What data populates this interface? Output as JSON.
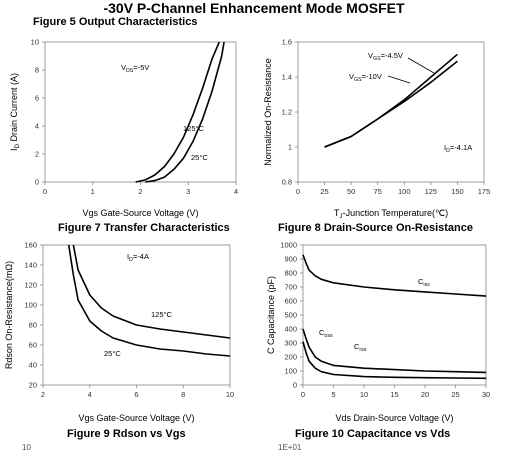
{
  "page": {
    "header": "-30V P-Channel Enhancement Mode MOSFET",
    "titles": {
      "fig5": "Figure 5 Output Characteristics",
      "fig7": "Figure 7 Transfer Characteristics",
      "fig8": "Figure 8 Drain-Source On-Resistance",
      "fig9": "Figure 9 Rdson vs Vgs",
      "fig10": "Figure 10 Capacitance vs Vds"
    },
    "bottom_tick_left": "10",
    "bottom_tick_right": "1E+01"
  },
  "chart_data": [
    {
      "id": "fig7",
      "type": "line",
      "title": "Figure 7 Transfer Characteristics",
      "xlabel": "Vgs Gate-Source Voltage (V)",
      "ylabel": "I_D Drain Current (A)",
      "xlim": [
        0,
        4
      ],
      "ylim": [
        0,
        10
      ],
      "xticks": [
        "0",
        "1",
        "2",
        "3",
        "4"
      ],
      "yticks": [
        "0",
        "2",
        "4",
        "6",
        "8",
        "10"
      ],
      "annotations": [
        "V_DS=-5V"
      ],
      "series": [
        {
          "name": "125°C",
          "x": [
            1.9,
            2.1,
            2.3,
            2.5,
            2.7,
            2.9,
            3.1,
            3.3,
            3.5,
            3.65
          ],
          "y": [
            0,
            0.15,
            0.5,
            1.1,
            2.0,
            3.2,
            4.8,
            6.7,
            8.8,
            10
          ]
        },
        {
          "name": "25°C",
          "x": [
            2.1,
            2.3,
            2.5,
            2.7,
            2.9,
            3.1,
            3.3,
            3.5,
            3.7,
            3.75
          ],
          "y": [
            0,
            0.1,
            0.35,
            0.9,
            1.7,
            2.9,
            4.5,
            6.5,
            9.0,
            10
          ]
        }
      ]
    },
    {
      "id": "fig8",
      "type": "line",
      "title": "Figure 8 Drain-Source On-Resistance",
      "xlabel": "T_J-Junction Temperature(℃)",
      "ylabel": "Normalized On-Resistance",
      "xlim": [
        0,
        175
      ],
      "ylim": [
        0.8,
        1.6
      ],
      "xticks": [
        "0",
        "25",
        "50",
        "75",
        "100",
        "125",
        "150",
        "175"
      ],
      "yticks": [
        "0.8",
        "1",
        "1.2",
        "1.4",
        "1.6"
      ],
      "annotations": [
        "I_D=-4.1A"
      ],
      "series": [
        {
          "name": "V_GS=-4.5V",
          "x": [
            25,
            50,
            75,
            100,
            125,
            150
          ],
          "y": [
            1.0,
            1.06,
            1.16,
            1.27,
            1.4,
            1.53
          ]
        },
        {
          "name": "V_GS=-10V",
          "x": [
            25,
            50,
            75,
            100,
            125,
            150
          ],
          "y": [
            1.0,
            1.06,
            1.16,
            1.26,
            1.37,
            1.49
          ]
        }
      ]
    },
    {
      "id": "fig9",
      "type": "line",
      "title": "Figure 9 Rdson vs Vgs",
      "xlabel": "Vgs Gate-Source Voltage (V)",
      "ylabel": "Rdson On-Resistance(mΩ)",
      "xlim": [
        2,
        10
      ],
      "ylim": [
        20,
        160
      ],
      "xticks": [
        "2",
        "4",
        "6",
        "8",
        "10"
      ],
      "yticks": [
        "20",
        "40",
        "60",
        "80",
        "100",
        "120",
        "140",
        "160"
      ],
      "annotations": [
        "I_D=-4A"
      ],
      "series": [
        {
          "name": "125°C",
          "x": [
            3.3,
            3.5,
            4,
            4.5,
            5,
            6,
            7,
            8,
            9,
            10
          ],
          "y": [
            160,
            135,
            110,
            97,
            89,
            80,
            76,
            73,
            70,
            67
          ]
        },
        {
          "name": "25°C",
          "x": [
            3.1,
            3.3,
            3.5,
            4,
            4.5,
            5,
            6,
            7,
            8,
            9,
            10
          ],
          "y": [
            160,
            130,
            105,
            84,
            74,
            67,
            60,
            56,
            54,
            51,
            49
          ]
        }
      ]
    },
    {
      "id": "fig10",
      "type": "line",
      "title": "Figure 10 Capacitance vs Vds",
      "xlabel": "Vds Drain-Source Voltage (V)",
      "ylabel": "C Capacitance (pF)",
      "xlim": [
        0,
        30
      ],
      "ylim": [
        0,
        1000
      ],
      "xticks": [
        "0",
        "5",
        "10",
        "15",
        "20",
        "25",
        "30"
      ],
      "yticks": [
        "0",
        "100",
        "200",
        "300",
        "400",
        "500",
        "600",
        "700",
        "800",
        "900",
        "1000"
      ],
      "series": [
        {
          "name": "C_iss",
          "x": [
            0,
            0.5,
            1,
            2,
            3,
            5,
            10,
            15,
            20,
            25,
            30
          ],
          "y": [
            930,
            870,
            820,
            780,
            755,
            730,
            700,
            680,
            665,
            650,
            635
          ]
        },
        {
          "name": "C_oss",
          "x": [
            0,
            0.5,
            1,
            2,
            3,
            5,
            10,
            15,
            20,
            25,
            30
          ],
          "y": [
            400,
            330,
            270,
            200,
            170,
            140,
            120,
            110,
            100,
            95,
            90
          ]
        },
        {
          "name": "C_rss",
          "x": [
            0,
            0.5,
            1,
            2,
            3,
            5,
            10,
            15,
            20,
            25,
            30
          ],
          "y": [
            310,
            230,
            170,
            120,
            95,
            75,
            60,
            55,
            52,
            50,
            48
          ]
        }
      ]
    }
  ]
}
